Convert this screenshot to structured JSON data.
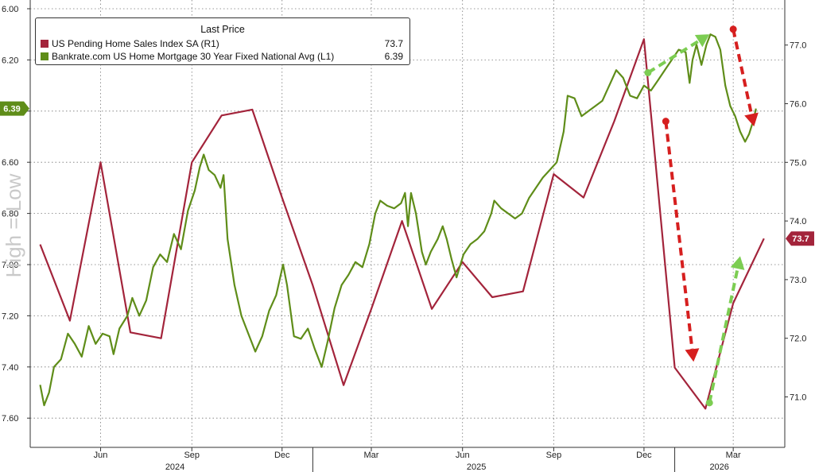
{
  "chart_data": {
    "type": "line",
    "title": "",
    "colors": {
      "pending": "#a3243b",
      "mortgage": "#5f8d19",
      "arrow_red": "#d61f1f",
      "arrow_green": "#7ccd52",
      "axis": "#333333",
      "grid": "#777777"
    },
    "legend": {
      "header": "Last Price",
      "entries": [
        {
          "name": "US Pending Home Sales Index SA  (R1)",
          "value": "73.7",
          "color": "#a3243b"
        },
        {
          "name": "Bankrate.com US Home Mortgage 30 Year Fixed National Avg  (L1)",
          "value": "6.39",
          "color": "#5f8d19"
        }
      ]
    },
    "left_axis": {
      "label": "High = Low",
      "inverted": true,
      "range": [
        6.0,
        7.7
      ],
      "ticks": [
        "6.00",
        "6.20",
        "6.40",
        "6.60",
        "6.80",
        "7.00",
        "7.20",
        "7.40",
        "7.60"
      ],
      "last_value_tag": "6.39"
    },
    "right_axis": {
      "range": [
        70.2,
        77.9
      ],
      "ticks": [
        "71.0",
        "72.0",
        "73.0",
        "74.0",
        "75.0",
        "76.0",
        "77.0"
      ],
      "last_value_tag": "73.7"
    },
    "x_axis": {
      "month_labels": [
        {
          "label": "Jun",
          "date": "2024-06-01"
        },
        {
          "label": "Sep",
          "date": "2024-09-01"
        },
        {
          "label": "Dec",
          "date": "2024-12-01"
        },
        {
          "label": "Mar",
          "date": "2025-03-01"
        },
        {
          "label": "Jun",
          "date": "2025-06-01"
        },
        {
          "label": "Sep",
          "date": "2025-09-01"
        },
        {
          "label": "Dec",
          "date": "2025-12-01"
        },
        {
          "label": "Mar",
          "date": "2026-03-01"
        }
      ],
      "year_labels": [
        {
          "label": "2024",
          "date": "2024-08-15"
        },
        {
          "label": "2025",
          "date": "2025-06-15"
        },
        {
          "label": "2026",
          "date": "2026-02-15"
        }
      ],
      "year_dividers": [
        "2025-01-01",
        "2026-01-01"
      ]
    },
    "series": [
      {
        "name": "US Pending Home Sales Index SA",
        "axis": "right",
        "points": [
          [
            "2024-04-01",
            73.6
          ],
          [
            "2024-05-01",
            72.3
          ],
          [
            "2024-06-01",
            75.0
          ],
          [
            "2024-07-01",
            72.1
          ],
          [
            "2024-08-01",
            72.0
          ],
          [
            "2024-09-01",
            75.0
          ],
          [
            "2024-10-01",
            75.8
          ],
          [
            "2024-11-01",
            75.9
          ],
          [
            "2024-12-01",
            74.4
          ],
          [
            "2025-01-01",
            72.9
          ],
          [
            "2025-02-01",
            71.2
          ],
          [
            "2025-03-01",
            72.5
          ],
          [
            "2025-04-01",
            74.0
          ],
          [
            "2025-05-01",
            72.5
          ],
          [
            "2025-06-01",
            73.3
          ],
          [
            "2025-07-01",
            72.7
          ],
          [
            "2025-08-01",
            72.8
          ],
          [
            "2025-09-01",
            74.8
          ],
          [
            "2025-10-01",
            74.4
          ],
          [
            "2025-11-01",
            75.7
          ],
          [
            "2025-12-01",
            77.1
          ],
          [
            "2026-01-01",
            71.5
          ],
          [
            "2026-02-01",
            70.8
          ],
          [
            "2026-03-01",
            72.6
          ],
          [
            "2026-04-01",
            73.7
          ]
        ]
      },
      {
        "name": "Bankrate.com US Home Mortgage 30 Year Fixed National Avg",
        "axis": "left",
        "points": [
          [
            "2024-04-01",
            7.47
          ],
          [
            "2024-04-05",
            7.55
          ],
          [
            "2024-04-10",
            7.5
          ],
          [
            "2024-04-15",
            7.4
          ],
          [
            "2024-04-22",
            7.37
          ],
          [
            "2024-04-29",
            7.27
          ],
          [
            "2024-05-06",
            7.31
          ],
          [
            "2024-05-13",
            7.36
          ],
          [
            "2024-05-20",
            7.24
          ],
          [
            "2024-05-27",
            7.31
          ],
          [
            "2024-06-03",
            7.27
          ],
          [
            "2024-06-10",
            7.28
          ],
          [
            "2024-06-14",
            7.35
          ],
          [
            "2024-06-20",
            7.25
          ],
          [
            "2024-06-28",
            7.2
          ],
          [
            "2024-07-03",
            7.13
          ],
          [
            "2024-07-10",
            7.2
          ],
          [
            "2024-07-17",
            7.14
          ],
          [
            "2024-07-24",
            7.01
          ],
          [
            "2024-07-31",
            6.96
          ],
          [
            "2024-08-07",
            6.99
          ],
          [
            "2024-08-14",
            6.88
          ],
          [
            "2024-08-21",
            6.94
          ],
          [
            "2024-08-28",
            6.79
          ],
          [
            "2024-09-04",
            6.71
          ],
          [
            "2024-09-09",
            6.62
          ],
          [
            "2024-09-13",
            6.57
          ],
          [
            "2024-09-18",
            6.63
          ],
          [
            "2024-09-24",
            6.65
          ],
          [
            "2024-09-30",
            6.7
          ],
          [
            "2024-10-03",
            6.65
          ],
          [
            "2024-10-07",
            6.9
          ],
          [
            "2024-10-14",
            7.08
          ],
          [
            "2024-10-21",
            7.2
          ],
          [
            "2024-10-28",
            7.27
          ],
          [
            "2024-11-04",
            7.34
          ],
          [
            "2024-11-11",
            7.28
          ],
          [
            "2024-11-18",
            7.18
          ],
          [
            "2024-11-25",
            7.12
          ],
          [
            "2024-12-02",
            7.0
          ],
          [
            "2024-12-06",
            7.08
          ],
          [
            "2024-12-13",
            7.28
          ],
          [
            "2024-12-20",
            7.29
          ],
          [
            "2024-12-27",
            7.25
          ],
          [
            "2025-01-03",
            7.33
          ],
          [
            "2025-01-10",
            7.4
          ],
          [
            "2025-01-16",
            7.3
          ],
          [
            "2025-01-23",
            7.17
          ],
          [
            "2025-01-30",
            7.08
          ],
          [
            "2025-02-06",
            7.04
          ],
          [
            "2025-02-13",
            6.99
          ],
          [
            "2025-02-20",
            7.01
          ],
          [
            "2025-02-27",
            6.92
          ],
          [
            "2025-03-05",
            6.8
          ],
          [
            "2025-03-10",
            6.75
          ],
          [
            "2025-03-17",
            6.77
          ],
          [
            "2025-03-24",
            6.78
          ],
          [
            "2025-03-31",
            6.76
          ],
          [
            "2025-04-04",
            6.72
          ],
          [
            "2025-04-07",
            6.85
          ],
          [
            "2025-04-10",
            6.72
          ],
          [
            "2025-04-15",
            6.8
          ],
          [
            "2025-04-21",
            6.95
          ],
          [
            "2025-04-25",
            7.0
          ],
          [
            "2025-04-30",
            6.95
          ],
          [
            "2025-05-07",
            6.9
          ],
          [
            "2025-05-12",
            6.85
          ],
          [
            "2025-05-16",
            6.9
          ],
          [
            "2025-05-21",
            6.98
          ],
          [
            "2025-05-26",
            7.05
          ],
          [
            "2025-06-02",
            6.96
          ],
          [
            "2025-06-09",
            6.92
          ],
          [
            "2025-06-16",
            6.9
          ],
          [
            "2025-06-23",
            6.87
          ],
          [
            "2025-06-30",
            6.8
          ],
          [
            "2025-07-03",
            6.75
          ],
          [
            "2025-07-10",
            6.78
          ],
          [
            "2025-07-17",
            6.8
          ],
          [
            "2025-07-24",
            6.82
          ],
          [
            "2025-07-31",
            6.8
          ],
          [
            "2025-08-07",
            6.74
          ],
          [
            "2025-08-14",
            6.7
          ],
          [
            "2025-08-21",
            6.66
          ],
          [
            "2025-08-28",
            6.63
          ],
          [
            "2025-09-04",
            6.6
          ],
          [
            "2025-09-11",
            6.48
          ],
          [
            "2025-09-15",
            6.34
          ],
          [
            "2025-09-22",
            6.35
          ],
          [
            "2025-09-29",
            6.42
          ],
          [
            "2025-10-06",
            6.4
          ],
          [
            "2025-10-13",
            6.38
          ],
          [
            "2025-10-20",
            6.36
          ],
          [
            "2025-10-27",
            6.3
          ],
          [
            "2025-11-03",
            6.24
          ],
          [
            "2025-11-10",
            6.27
          ],
          [
            "2025-11-17",
            6.34
          ],
          [
            "2025-11-24",
            6.35
          ],
          [
            "2025-12-01",
            6.3
          ],
          [
            "2025-12-08",
            6.32
          ],
          [
            "2025-12-15",
            6.28
          ],
          [
            "2025-12-22",
            6.24
          ],
          [
            "2025-12-29",
            6.2
          ],
          [
            "2026-01-05",
            6.16
          ],
          [
            "2026-01-12",
            6.17
          ],
          [
            "2026-01-16",
            6.29
          ],
          [
            "2026-01-19",
            6.2
          ],
          [
            "2026-01-23",
            6.14
          ],
          [
            "2026-01-28",
            6.22
          ],
          [
            "2026-02-02",
            6.14
          ],
          [
            "2026-02-06",
            6.1
          ],
          [
            "2026-02-11",
            6.11
          ],
          [
            "2026-02-16",
            6.16
          ],
          [
            "2026-02-21",
            6.3
          ],
          [
            "2026-02-26",
            6.38
          ],
          [
            "2026-03-03",
            6.42
          ],
          [
            "2026-03-08",
            6.48
          ],
          [
            "2026-03-13",
            6.52
          ],
          [
            "2026-03-17",
            6.49
          ],
          [
            "2026-03-21",
            6.44
          ],
          [
            "2026-03-24",
            6.39
          ]
        ]
      }
    ],
    "annotations": [
      {
        "type": "arrow",
        "color": "green",
        "from": [
          "2025-12-05",
          6.25,
          "left"
        ],
        "to": [
          "2026-02-05",
          6.1,
          "left"
        ]
      },
      {
        "type": "arrow",
        "color": "red",
        "from": [
          "2026-03-01",
          6.08,
          "left"
        ],
        "to": [
          "2026-03-22",
          6.46,
          "left"
        ]
      },
      {
        "type": "arrow",
        "color": "red",
        "from": [
          "2025-12-23",
          75.7,
          "right"
        ],
        "to": [
          "2026-01-20",
          71.6,
          "right"
        ]
      },
      {
        "type": "arrow",
        "color": "green",
        "from": [
          "2026-02-05",
          70.9,
          "right"
        ],
        "to": [
          "2026-03-08",
          73.4,
          "right"
        ]
      }
    ]
  }
}
